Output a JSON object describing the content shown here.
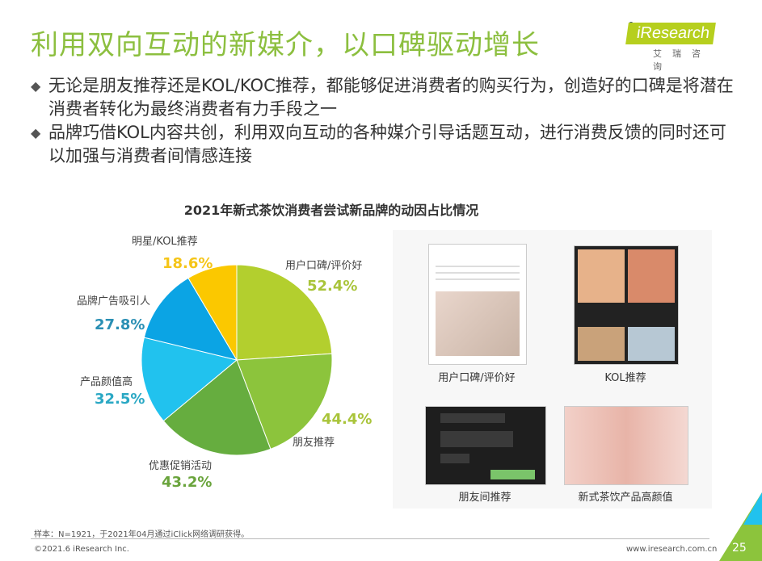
{
  "slide": {
    "title": "利用双向互动的新媒介，以口碑驱动增长",
    "logo": {
      "brand": "iResearch",
      "sub": "艾瑞咨询",
      "color": "#b6cf1e"
    },
    "bullets": [
      "无论是朋友推荐还是KOL/KOC推荐，都能够促进消费者的购买行为，创造好的口碑是将潜在消费者转化为最终消费者有力手段之一",
      "品牌巧借KOL内容共创，利用双向互动的各种媒介引导话题互动，进行消费反馈的同时还可以加强与消费者间情感连接"
    ],
    "bullet_icon": "diamond-bullet-icon",
    "images": [
      {
        "caption": "用户口碑/评价好"
      },
      {
        "caption": "KOL推荐"
      },
      {
        "caption": "朋友间推荐"
      },
      {
        "caption": "新式茶饮产品高颜值"
      }
    ],
    "footer": {
      "note": "样本：N=1921，于2021年04月通过iClick网络调研获得。",
      "copyright": "©2021.6 iResearch Inc.",
      "url": "www.iresearch.com.cn",
      "page": "25"
    }
  },
  "chart_data": {
    "type": "pie",
    "title": "2021年新式茶饮消费者尝试新品牌的动因占比情况",
    "categories": [
      "用户口碑/评价好",
      "朋友推荐",
      "优惠促销活动",
      "产品颜值高",
      "品牌广告吸引人",
      "明星/KOL推荐"
    ],
    "values": [
      52.4,
      44.4,
      43.2,
      32.5,
      27.8,
      18.6
    ],
    "labels": [
      "52.4%",
      "44.4%",
      "43.2%",
      "32.5%",
      "27.8%",
      "18.6%"
    ],
    "unit": "%",
    "colors": [
      "#b3cf2e",
      "#8cc43c",
      "#66ad3f",
      "#21c2ee",
      "#0ba4e4",
      "#fbc800"
    ],
    "label_colors": [
      "#a9c43a",
      "#a9c43a",
      "#6aa43c",
      "#2aa8c4",
      "#2a8fb4",
      "#f5c518"
    ]
  }
}
